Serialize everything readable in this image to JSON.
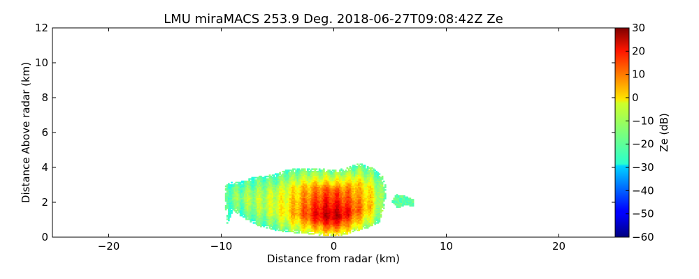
{
  "chart_data": {
    "type": "heatmap",
    "title": "LMU miraMACS 253.9 Deg. 2018-06-27T09:08:42Z  Ze",
    "xlabel": "Distance from radar (km)",
    "ylabel": "Distance Above radar  (km)",
    "xlim": [
      -25,
      25
    ],
    "ylim": [
      0,
      12
    ],
    "xticks": [
      {
        "value": -20,
        "label": "−20"
      },
      {
        "value": -10,
        "label": "−10"
      },
      {
        "value": 0,
        "label": "0"
      },
      {
        "value": 10,
        "label": "10"
      },
      {
        "value": 20,
        "label": "20"
      }
    ],
    "yticks": [
      {
        "value": 0,
        "label": "0"
      },
      {
        "value": 2,
        "label": "2"
      },
      {
        "value": 4,
        "label": "4"
      },
      {
        "value": 6,
        "label": "6"
      },
      {
        "value": 8,
        "label": "8"
      },
      {
        "value": 10,
        "label": "10"
      },
      {
        "value": 12,
        "label": "12"
      }
    ],
    "grid": false,
    "colormap": "jet",
    "colorbar": {
      "label": "Ze (dB)",
      "range": [
        -60,
        30
      ],
      "ticks": [
        {
          "value": 30,
          "label": "30"
        },
        {
          "value": 20,
          "label": "20"
        },
        {
          "value": 10,
          "label": "10"
        },
        {
          "value": 0,
          "label": "0"
        },
        {
          "value": -10,
          "label": "−10"
        },
        {
          "value": -20,
          "label": "−20"
        },
        {
          "value": -30,
          "label": "−30"
        },
        {
          "value": -40,
          "label": "−40"
        },
        {
          "value": -50,
          "label": "−50"
        },
        {
          "value": -60,
          "label": "−60"
        }
      ]
    },
    "echo_region": {
      "outline": [
        [
          -9.6,
          0.6
        ],
        [
          -9.7,
          1.8
        ],
        [
          -9.7,
          2.9
        ],
        [
          -9.3,
          3.1
        ],
        [
          -8.6,
          3.1
        ],
        [
          -8.0,
          3.2
        ],
        [
          -7.2,
          3.4
        ],
        [
          -6.0,
          3.5
        ],
        [
          -5.0,
          3.6
        ],
        [
          -4.4,
          3.8
        ],
        [
          -3.0,
          3.9
        ],
        [
          -1.5,
          3.9
        ],
        [
          0.0,
          3.8
        ],
        [
          1.0,
          3.9
        ],
        [
          2.2,
          4.2
        ],
        [
          3.5,
          3.9
        ],
        [
          4.2,
          3.5
        ],
        [
          4.5,
          3.0
        ],
        [
          4.6,
          2.4
        ],
        [
          4.4,
          1.6
        ],
        [
          4.0,
          0.8
        ],
        [
          3.5,
          0.6
        ],
        [
          1.0,
          0.1
        ],
        [
          0.0,
          0.0
        ],
        [
          -2.0,
          0.1
        ],
        [
          -5.0,
          0.3
        ],
        [
          -6.8,
          0.6
        ],
        [
          -8.0,
          1.0
        ],
        [
          -9.0,
          1.5
        ]
      ],
      "isolated_echo": [
        [
          5.1,
          2.0
        ],
        [
          5.5,
          2.4
        ],
        [
          6.3,
          2.3
        ],
        [
          7.1,
          2.1
        ],
        [
          7.0,
          1.7
        ],
        [
          6.3,
          1.8
        ],
        [
          5.6,
          1.6
        ]
      ],
      "ze_min_db": -25,
      "ze_max_db": 28
    }
  }
}
